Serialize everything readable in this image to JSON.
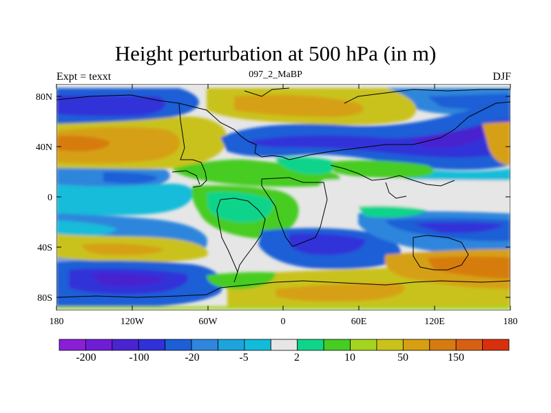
{
  "title": "Height perturbation at 500 hPa (in m)",
  "left_label": "Expt = texxt",
  "center_label": "097_2_MaBP",
  "right_label": "DJF",
  "axes": {
    "x_ticks": [
      "180",
      "120W",
      "60W",
      "0",
      "60E",
      "120E",
      "180"
    ],
    "y_ticks": [
      "80N",
      "40N",
      "0",
      "40S",
      "80S"
    ]
  },
  "colorbar": {
    "colors": [
      "#8a1fd6",
      "#6f1ed6",
      "#4a24d0",
      "#3131d9",
      "#1c5fd6",
      "#2f86dc",
      "#1ea3dd",
      "#12bcd9",
      "#e6e6e6",
      "#10d48a",
      "#46cc23",
      "#a3d41f",
      "#c9c21a",
      "#d6a012",
      "#d67b10",
      "#d86014",
      "#d8300c"
    ],
    "labels": [
      "-200",
      "-100",
      "-20",
      "-5",
      "2",
      "10",
      "50",
      "150"
    ]
  },
  "icons": {
    "map": "world-contour-map-icon"
  }
}
